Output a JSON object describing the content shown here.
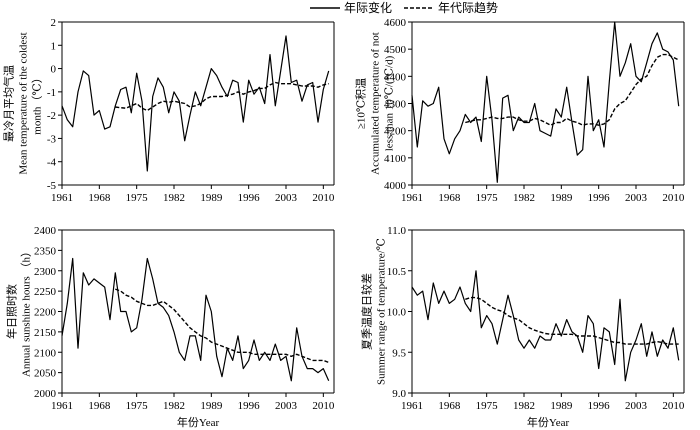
{
  "legend": {
    "annual_label": "年际变化",
    "decadal_label": "年代际趋势",
    "placement": "top-center"
  },
  "colors": {
    "line": "#000000",
    "background": "#ffffff"
  },
  "chart_data": [
    {
      "type": "line",
      "panel": "top-left",
      "ylabel_lines": [
        "最冷月平均气温",
        "Mean temperature of the coldest",
        "month（℃）"
      ],
      "xlabel_lines": [],
      "xlim": [
        1961,
        2012
      ],
      "ylim": [
        -5,
        2
      ],
      "xticks": [
        "1961",
        "1968",
        "1975",
        "1982",
        "1989",
        "1996",
        "2003",
        "2010"
      ],
      "yticks": [
        "-5",
        "-4",
        "-3",
        "-2",
        "-1",
        "0",
        "1",
        "2"
      ],
      "x": [
        1961,
        1962,
        1963,
        1964,
        1965,
        1966,
        1967,
        1968,
        1969,
        1970,
        1971,
        1972,
        1973,
        1974,
        1975,
        1976,
        1977,
        1978,
        1979,
        1980,
        1981,
        1982,
        1983,
        1984,
        1985,
        1986,
        1987,
        1988,
        1989,
        1990,
        1991,
        1992,
        1993,
        1994,
        1995,
        1996,
        1997,
        1998,
        1999,
        2000,
        2001,
        2002,
        2003,
        2004,
        2005,
        2006,
        2007,
        2008,
        2009,
        2010,
        2011
      ],
      "series": [
        {
          "values": [
            -1.6,
            -2.2,
            -2.5,
            -1.0,
            -0.1,
            -0.3,
            -2.0,
            -1.8,
            -2.6,
            -2.5,
            -1.6,
            -0.9,
            -0.8,
            -1.9,
            -0.2,
            -1.4,
            -4.4,
            -1.2,
            -0.4,
            -0.8,
            -1.9,
            -1.0,
            -1.4,
            -3.1,
            -2.0,
            -1.0,
            -1.6,
            -0.8,
            0.0,
            -0.3,
            -0.8,
            -1.2,
            -0.5,
            -0.6,
            -2.3,
            -0.5,
            -1.1,
            -0.8,
            -1.5,
            0.6,
            -1.6,
            -0.1,
            1.4,
            -0.6,
            -0.5,
            -1.4,
            -0.7,
            -0.6,
            -2.3,
            -0.9,
            -0.1
          ]
        },
        {
          "values": [
            null,
            null,
            null,
            null,
            null,
            null,
            null,
            null,
            null,
            null,
            -1.65,
            -1.68,
            -1.7,
            -1.6,
            -1.5,
            -1.7,
            -1.8,
            -1.65,
            -1.5,
            -1.4,
            -1.45,
            -1.4,
            -1.45,
            -1.5,
            -1.65,
            -1.6,
            -1.5,
            -1.3,
            -1.2,
            -1.2,
            -1.2,
            -1.15,
            -1.1,
            -1.0,
            -1.1,
            -1.0,
            -0.95,
            -0.85,
            -0.85,
            -0.7,
            -0.6,
            -0.65,
            -0.65,
            -0.65,
            -0.7,
            -0.75,
            -0.75,
            -0.75,
            -0.8,
            -0.7,
            -0.65
          ]
        }
      ]
    },
    {
      "type": "line",
      "panel": "top-right",
      "ylabel_lines": [
        "≥10℃积温",
        "Accumulated temperature of not",
        "less than 10℃/(℃/d)"
      ],
      "xlabel_lines": [],
      "xlim": [
        1961,
        2012
      ],
      "ylim": [
        4000,
        4600
      ],
      "xticks": [
        "1961",
        "1968",
        "1975",
        "1982",
        "1989",
        "1996",
        "2003",
        "2010"
      ],
      "yticks": [
        "4000",
        "4100",
        "4200",
        "4300",
        "4400",
        "4500",
        "4600"
      ],
      "x": [
        1961,
        1962,
        1963,
        1964,
        1965,
        1966,
        1967,
        1968,
        1969,
        1970,
        1971,
        1972,
        1973,
        1974,
        1975,
        1976,
        1977,
        1978,
        1979,
        1980,
        1981,
        1982,
        1983,
        1984,
        1985,
        1986,
        1987,
        1988,
        1989,
        1990,
        1991,
        1992,
        1993,
        1994,
        1995,
        1996,
        1997,
        1998,
        1999,
        2000,
        2001,
        2002,
        2003,
        2004,
        2005,
        2006,
        2007,
        2008,
        2009,
        2010,
        2011
      ],
      "series": [
        {
          "values": [
            4330,
            4140,
            4310,
            4290,
            4300,
            4360,
            4170,
            4115,
            4170,
            4200,
            4260,
            4230,
            4250,
            4160,
            4400,
            4240,
            4010,
            4320,
            4330,
            4200,
            4250,
            4230,
            4230,
            4300,
            4200,
            4190,
            4180,
            4280,
            4250,
            4360,
            4230,
            4110,
            4130,
            4400,
            4200,
            4240,
            4140,
            4380,
            4600,
            4400,
            4450,
            4520,
            4400,
            4380,
            4450,
            4520,
            4560,
            4500,
            4490,
            4460,
            4290
          ]
        },
        {
          "values": [
            null,
            null,
            null,
            null,
            null,
            null,
            null,
            null,
            null,
            null,
            4230,
            4235,
            4240,
            4240,
            4245,
            4250,
            4245,
            4245,
            4250,
            4250,
            4240,
            4235,
            4235,
            4245,
            4240,
            4230,
            4220,
            4230,
            4230,
            4245,
            4235,
            4230,
            4220,
            4225,
            4225,
            4220,
            4225,
            4240,
            4280,
            4300,
            4310,
            4340,
            4370,
            4390,
            4400,
            4440,
            4470,
            4480,
            4480,
            4470,
            4460
          ]
        }
      ]
    },
    {
      "type": "line",
      "panel": "bottom-left",
      "ylabel_lines": [
        "年日照时数",
        "Annual sunshine hours （h）"
      ],
      "xlabel_lines": [
        "年份Year"
      ],
      "xlim": [
        1961,
        2012
      ],
      "ylim": [
        2000,
        2400
      ],
      "xticks": [
        "1961",
        "1968",
        "1975",
        "1982",
        "1989",
        "1996",
        "2003",
        "2010"
      ],
      "yticks": [
        "2000",
        "2050",
        "2100",
        "2150",
        "2200",
        "2250",
        "2300",
        "2350",
        "2400"
      ],
      "x": [
        1961,
        1962,
        1963,
        1964,
        1965,
        1966,
        1967,
        1968,
        1969,
        1970,
        1971,
        1972,
        1973,
        1974,
        1975,
        1976,
        1977,
        1978,
        1979,
        1980,
        1981,
        1982,
        1983,
        1984,
        1985,
        1986,
        1987,
        1988,
        1989,
        1990,
        1991,
        1992,
        1993,
        1994,
        1995,
        1996,
        1997,
        1998,
        1999,
        2000,
        2001,
        2002,
        2003,
        2004,
        2005,
        2006,
        2007,
        2008,
        2009,
        2010,
        2011
      ],
      "series": [
        {
          "values": [
            2140,
            2220,
            2330,
            2110,
            2295,
            2265,
            2280,
            2270,
            2260,
            2180,
            2295,
            2200,
            2200,
            2150,
            2160,
            2230,
            2330,
            2280,
            2220,
            2210,
            2190,
            2150,
            2100,
            2080,
            2140,
            2140,
            2080,
            2240,
            2200,
            2090,
            2040,
            2110,
            2080,
            2140,
            2060,
            2080,
            2130,
            2080,
            2100,
            2080,
            2120,
            2080,
            2090,
            2030,
            2160,
            2090,
            2060,
            2060,
            2050,
            2060,
            2030
          ]
        },
        {
          "values": [
            null,
            null,
            null,
            null,
            null,
            null,
            null,
            null,
            null,
            null,
            2255,
            2250,
            2240,
            2235,
            2225,
            2220,
            2215,
            2215,
            2220,
            2225,
            2215,
            2205,
            2190,
            2175,
            2160,
            2150,
            2140,
            2135,
            2125,
            2120,
            2115,
            2110,
            2105,
            2100,
            2100,
            2100,
            2095,
            2095,
            2095,
            2095,
            2095,
            2095,
            2095,
            2090,
            2095,
            2090,
            2085,
            2080,
            2080,
            2080,
            2075
          ]
        }
      ]
    },
    {
      "type": "line",
      "panel": "bottom-right",
      "ylabel_lines": [
        "夏季温度日较差",
        "Summer range of temperature/℃"
      ],
      "xlabel_lines": [
        "年份Year"
      ],
      "xlim": [
        1961,
        2012
      ],
      "ylim": [
        9.0,
        11.0
      ],
      "xticks": [
        "1961",
        "1968",
        "1975",
        "1982",
        "1989",
        "1996",
        "2003",
        "2010"
      ],
      "yticks": [
        "9.0",
        "9.5",
        "10.0",
        "10.5",
        "11.0"
      ],
      "x": [
        1961,
        1962,
        1963,
        1964,
        1965,
        1966,
        1967,
        1968,
        1969,
        1970,
        1971,
        1972,
        1973,
        1974,
        1975,
        1976,
        1977,
        1978,
        1979,
        1980,
        1981,
        1982,
        1983,
        1984,
        1985,
        1986,
        1987,
        1988,
        1989,
        1990,
        1991,
        1992,
        1993,
        1994,
        1995,
        1996,
        1997,
        1998,
        1999,
        2000,
        2001,
        2002,
        2003,
        2004,
        2005,
        2006,
        2007,
        2008,
        2009,
        2010,
        2011
      ],
      "series": [
        {
          "values": [
            10.3,
            10.2,
            10.25,
            9.9,
            10.35,
            10.1,
            10.25,
            10.1,
            10.15,
            10.3,
            10.1,
            10.0,
            10.5,
            9.8,
            9.95,
            9.85,
            9.6,
            9.9,
            10.2,
            9.95,
            9.65,
            9.55,
            9.65,
            9.55,
            9.7,
            9.65,
            9.65,
            9.85,
            9.7,
            9.9,
            9.75,
            9.7,
            9.5,
            9.95,
            9.85,
            9.3,
            9.8,
            9.75,
            9.35,
            10.15,
            9.15,
            9.5,
            9.65,
            9.85,
            9.45,
            9.75,
            9.45,
            9.65,
            9.55,
            9.8,
            9.4
          ]
        },
        {
          "values": [
            null,
            null,
            null,
            null,
            null,
            null,
            null,
            null,
            null,
            null,
            10.15,
            10.17,
            10.17,
            10.15,
            10.1,
            10.05,
            10.02,
            10.0,
            9.95,
            9.92,
            9.9,
            9.85,
            9.8,
            9.77,
            9.75,
            9.73,
            9.72,
            9.72,
            9.72,
            9.72,
            9.72,
            9.7,
            9.7,
            9.7,
            9.7,
            9.68,
            9.66,
            9.64,
            9.62,
            9.62,
            9.6,
            9.6,
            9.6,
            9.6,
            9.6,
            9.62,
            9.63,
            9.62,
            9.6,
            9.6,
            9.6
          ]
        }
      ]
    }
  ]
}
